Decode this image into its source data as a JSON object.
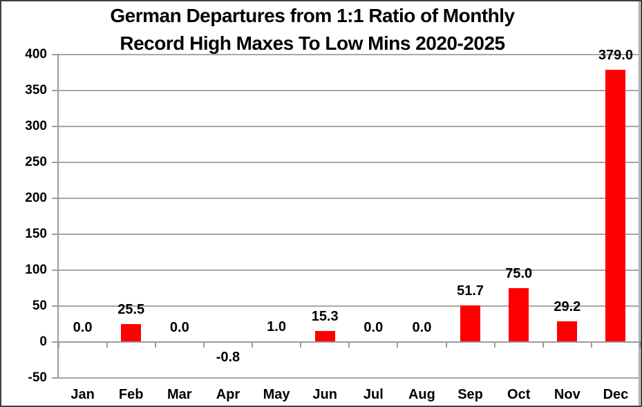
{
  "title": {
    "line1": "German Departures from 1:1 Ratio of Monthly",
    "line2": "Record High Maxes To Low Mins 2020-2025"
  },
  "chart_data": {
    "type": "bar",
    "title": "German Departures from 1:1 Ratio of Monthly Record High Maxes To Low Mins 2020-2025",
    "categories": [
      "Jan",
      "Feb",
      "Mar",
      "Apr",
      "May",
      "Jun",
      "Jul",
      "Aug",
      "Sep",
      "Oct",
      "Nov",
      "Dec"
    ],
    "values": [
      0.0,
      25.5,
      0.0,
      -0.8,
      1.0,
      15.3,
      0.0,
      0.0,
      51.7,
      75.0,
      29.2,
      379.0
    ],
    "value_labels": [
      "0.0",
      "25.5",
      "0.0",
      "-0.8",
      "1.0",
      "15.3",
      "0.0",
      "0.0",
      "51.7",
      "75.0",
      "29.2",
      "379.0"
    ],
    "xlabel": "",
    "ylabel": "",
    "ylim": [
      -50,
      400
    ],
    "yticks": [
      400,
      350,
      300,
      250,
      200,
      150,
      100,
      50,
      0,
      -50
    ],
    "grid": true,
    "legend": false,
    "colors": {
      "bar": "#ff0000",
      "gridline": "#a6a6a6",
      "axis": "#9b9b9b",
      "text": "#000000",
      "background": "#ffffff",
      "frame": "#3f3f3f"
    }
  }
}
